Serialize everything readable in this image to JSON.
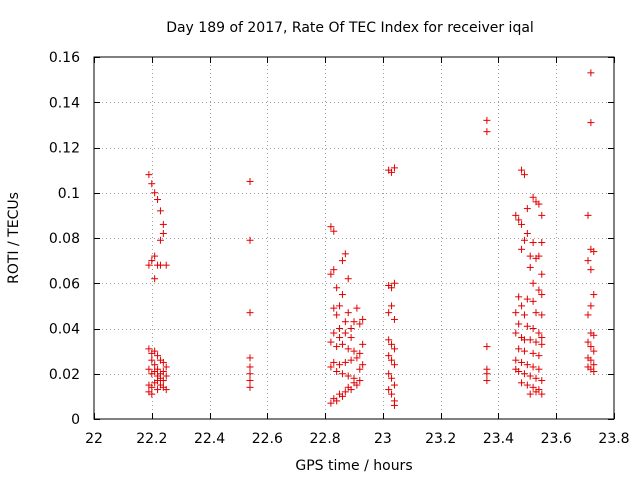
{
  "chart_data": {
    "type": "scatter",
    "title": "Day 189 of 2017, Rate Of TEC Index for receiver iqal",
    "xlabel": "GPS time / hours",
    "ylabel": "ROTI / TECUs",
    "xlim": [
      22,
      23.8
    ],
    "ylim": [
      0,
      0.16
    ],
    "x_ticks": [
      22,
      22.2,
      22.4,
      22.6,
      22.8,
      23,
      23.2,
      23.4,
      23.6,
      23.8
    ],
    "x_tick_labels": [
      "22",
      "22.2",
      "22.4",
      "22.6",
      "22.8",
      "23",
      "23.2",
      "23.4",
      "23.6",
      "23.8"
    ],
    "y_ticks": [
      0,
      0.02,
      0.04,
      0.06,
      0.08,
      0.1,
      0.12,
      0.14,
      0.16
    ],
    "y_tick_labels": [
      "0",
      "0.02",
      "0.04",
      "0.06",
      "0.08",
      "0.1",
      "0.12",
      "0.14",
      "0.16"
    ],
    "grid": true,
    "marker": "+",
    "marker_color": "#e00000",
    "series": [
      {
        "name": "ROTI",
        "points": [
          [
            22.19,
            0.108
          ],
          [
            22.2,
            0.104
          ],
          [
            22.21,
            0.1
          ],
          [
            22.22,
            0.097
          ],
          [
            22.23,
            0.092
          ],
          [
            22.24,
            0.086
          ],
          [
            22.24,
            0.082
          ],
          [
            22.23,
            0.079
          ],
          [
            22.19,
            0.068
          ],
          [
            22.2,
            0.07
          ],
          [
            22.21,
            0.072
          ],
          [
            22.22,
            0.068
          ],
          [
            22.23,
            0.068
          ],
          [
            22.25,
            0.068
          ],
          [
            22.21,
            0.062
          ],
          [
            22.19,
            0.031
          ],
          [
            22.2,
            0.029
          ],
          [
            22.21,
            0.03
          ],
          [
            22.22,
            0.028
          ],
          [
            22.23,
            0.026
          ],
          [
            22.24,
            0.025
          ],
          [
            22.19,
            0.022
          ],
          [
            22.2,
            0.02
          ],
          [
            22.21,
            0.021
          ],
          [
            22.22,
            0.019
          ],
          [
            22.23,
            0.018
          ],
          [
            22.24,
            0.017
          ],
          [
            22.25,
            0.019
          ],
          [
            22.19,
            0.015
          ],
          [
            22.2,
            0.014
          ],
          [
            22.21,
            0.016
          ],
          [
            22.22,
            0.013
          ],
          [
            22.23,
            0.015
          ],
          [
            22.24,
            0.014
          ],
          [
            22.25,
            0.013
          ],
          [
            22.19,
            0.012
          ],
          [
            22.2,
            0.011
          ],
          [
            22.22,
            0.017
          ],
          [
            22.24,
            0.021
          ],
          [
            22.25,
            0.023
          ],
          [
            22.2,
            0.026
          ],
          [
            22.21,
            0.024
          ],
          [
            22.22,
            0.022
          ],
          [
            22.23,
            0.02
          ],
          [
            22.54,
            0.105
          ],
          [
            22.54,
            0.079
          ],
          [
            22.54,
            0.047
          ],
          [
            22.54,
            0.027
          ],
          [
            22.54,
            0.023
          ],
          [
            22.54,
            0.02
          ],
          [
            22.54,
            0.017
          ],
          [
            22.54,
            0.014
          ],
          [
            22.82,
            0.085
          ],
          [
            22.83,
            0.083
          ],
          [
            22.86,
            0.07
          ],
          [
            22.87,
            0.073
          ],
          [
            22.88,
            0.062
          ],
          [
            22.83,
            0.066
          ],
          [
            22.82,
            0.064
          ],
          [
            22.84,
            0.058
          ],
          [
            22.86,
            0.055
          ],
          [
            22.85,
            0.05
          ],
          [
            22.83,
            0.049
          ],
          [
            22.84,
            0.046
          ],
          [
            22.88,
            0.047
          ],
          [
            22.91,
            0.049
          ],
          [
            22.92,
            0.042
          ],
          [
            22.9,
            0.043
          ],
          [
            22.89,
            0.04
          ],
          [
            22.87,
            0.038
          ],
          [
            22.85,
            0.036
          ],
          [
            22.83,
            0.038
          ],
          [
            22.82,
            0.034
          ],
          [
            22.84,
            0.032
          ],
          [
            22.86,
            0.033
          ],
          [
            22.88,
            0.031
          ],
          [
            22.9,
            0.03
          ],
          [
            22.92,
            0.029
          ],
          [
            22.91,
            0.027
          ],
          [
            22.89,
            0.026
          ],
          [
            22.87,
            0.025
          ],
          [
            22.85,
            0.024
          ],
          [
            22.83,
            0.025
          ],
          [
            22.82,
            0.023
          ],
          [
            22.84,
            0.021
          ],
          [
            22.86,
            0.02
          ],
          [
            22.88,
            0.019
          ],
          [
            22.9,
            0.018
          ],
          [
            22.92,
            0.017
          ],
          [
            22.91,
            0.015
          ],
          [
            22.89,
            0.013
          ],
          [
            22.87,
            0.012
          ],
          [
            22.85,
            0.011
          ],
          [
            22.83,
            0.009
          ],
          [
            22.82,
            0.007
          ],
          [
            22.84,
            0.008
          ],
          [
            22.86,
            0.01
          ],
          [
            22.88,
            0.014
          ],
          [
            22.9,
            0.016
          ],
          [
            22.92,
            0.022
          ],
          [
            22.93,
            0.024
          ],
          [
            22.93,
            0.033
          ],
          [
            22.93,
            0.044
          ],
          [
            22.89,
            0.036
          ],
          [
            22.87,
            0.043
          ],
          [
            22.85,
            0.04
          ],
          [
            23.02,
            0.11
          ],
          [
            23.03,
            0.109
          ],
          [
            23.04,
            0.111
          ],
          [
            23.02,
            0.059
          ],
          [
            23.03,
            0.058
          ],
          [
            23.04,
            0.06
          ],
          [
            23.03,
            0.05
          ],
          [
            23.02,
            0.047
          ],
          [
            23.04,
            0.044
          ],
          [
            23.02,
            0.035
          ],
          [
            23.03,
            0.033
          ],
          [
            23.04,
            0.031
          ],
          [
            23.02,
            0.028
          ],
          [
            23.03,
            0.026
          ],
          [
            23.04,
            0.024
          ],
          [
            23.02,
            0.02
          ],
          [
            23.03,
            0.018
          ],
          [
            23.04,
            0.015
          ],
          [
            23.02,
            0.013
          ],
          [
            23.03,
            0.011
          ],
          [
            23.04,
            0.008
          ],
          [
            23.04,
            0.006
          ],
          [
            23.36,
            0.132
          ],
          [
            23.36,
            0.127
          ],
          [
            23.36,
            0.032
          ],
          [
            23.36,
            0.022
          ],
          [
            23.36,
            0.02
          ],
          [
            23.36,
            0.017
          ],
          [
            23.48,
            0.11
          ],
          [
            23.49,
            0.108
          ],
          [
            23.52,
            0.098
          ],
          [
            23.53,
            0.096
          ],
          [
            23.54,
            0.095
          ],
          [
            23.5,
            0.093
          ],
          [
            23.55,
            0.09
          ],
          [
            23.46,
            0.09
          ],
          [
            23.47,
            0.088
          ],
          [
            23.48,
            0.086
          ],
          [
            23.5,
            0.082
          ],
          [
            23.49,
            0.079
          ],
          [
            23.52,
            0.078
          ],
          [
            23.55,
            0.078
          ],
          [
            23.48,
            0.075
          ],
          [
            23.51,
            0.072
          ],
          [
            23.53,
            0.071
          ],
          [
            23.54,
            0.072
          ],
          [
            23.51,
            0.067
          ],
          [
            23.55,
            0.064
          ],
          [
            23.52,
            0.06
          ],
          [
            23.54,
            0.057
          ],
          [
            23.55,
            0.055
          ],
          [
            23.47,
            0.054
          ],
          [
            23.5,
            0.053
          ],
          [
            23.52,
            0.052
          ],
          [
            23.48,
            0.05
          ],
          [
            23.46,
            0.047
          ],
          [
            23.49,
            0.046
          ],
          [
            23.53,
            0.047
          ],
          [
            23.55,
            0.046
          ],
          [
            23.47,
            0.042
          ],
          [
            23.5,
            0.041
          ],
          [
            23.52,
            0.04
          ],
          [
            23.54,
            0.038
          ],
          [
            23.46,
            0.038
          ],
          [
            23.48,
            0.036
          ],
          [
            23.51,
            0.035
          ],
          [
            23.53,
            0.034
          ],
          [
            23.55,
            0.033
          ],
          [
            23.47,
            0.031
          ],
          [
            23.49,
            0.03
          ],
          [
            23.52,
            0.029
          ],
          [
            23.54,
            0.028
          ],
          [
            23.46,
            0.026
          ],
          [
            23.48,
            0.025
          ],
          [
            23.5,
            0.024
          ],
          [
            23.52,
            0.023
          ],
          [
            23.54,
            0.022
          ],
          [
            23.47,
            0.021
          ],
          [
            23.49,
            0.02
          ],
          [
            23.51,
            0.019
          ],
          [
            23.53,
            0.018
          ],
          [
            23.55,
            0.017
          ],
          [
            23.48,
            0.016
          ],
          [
            23.5,
            0.015
          ],
          [
            23.52,
            0.014
          ],
          [
            23.54,
            0.013
          ],
          [
            23.53,
            0.012
          ],
          [
            23.55,
            0.011
          ],
          [
            23.51,
            0.011
          ],
          [
            23.46,
            0.022
          ],
          [
            23.49,
            0.035
          ],
          [
            23.55,
            0.036
          ],
          [
            23.72,
            0.153
          ],
          [
            23.72,
            0.131
          ],
          [
            23.71,
            0.09
          ],
          [
            23.72,
            0.075
          ],
          [
            23.73,
            0.074
          ],
          [
            23.71,
            0.07
          ],
          [
            23.72,
            0.066
          ],
          [
            23.73,
            0.055
          ],
          [
            23.72,
            0.05
          ],
          [
            23.71,
            0.046
          ],
          [
            23.72,
            0.038
          ],
          [
            23.73,
            0.037
          ],
          [
            23.71,
            0.034
          ],
          [
            23.72,
            0.032
          ],
          [
            23.73,
            0.03
          ],
          [
            23.71,
            0.027
          ],
          [
            23.72,
            0.026
          ],
          [
            23.73,
            0.024
          ],
          [
            23.71,
            0.023
          ],
          [
            23.72,
            0.022
          ],
          [
            23.73,
            0.021
          ]
        ]
      }
    ]
  }
}
